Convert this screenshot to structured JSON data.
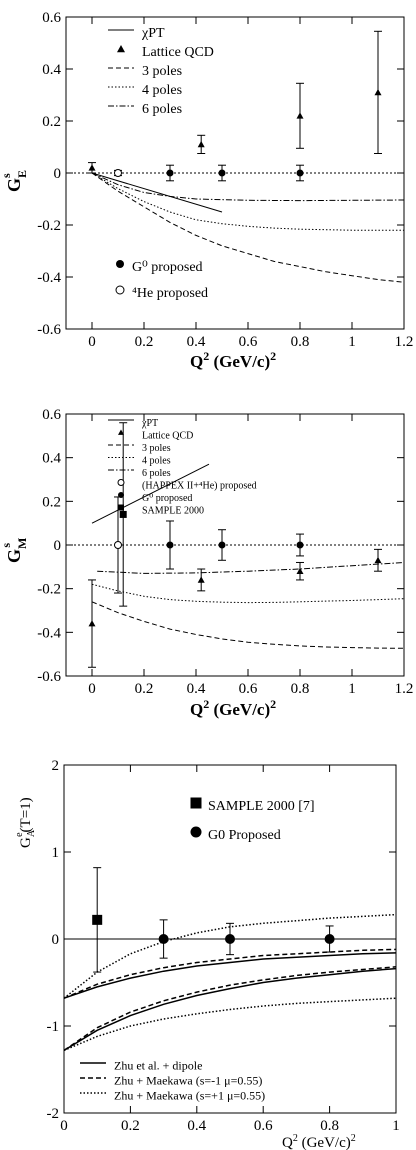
{
  "chart_data": [
    {
      "type": "scatter",
      "xlabel": "Q² (GeV/c)²",
      "ylabel": "G^s_E",
      "xlim": [
        -0.1,
        1.2
      ],
      "ylim": [
        -0.6,
        0.6
      ],
      "x_ticks": [
        "0",
        "0.2",
        "0.4",
        "0.6",
        "0.8",
        "1",
        "1.2"
      ],
      "y_ticks": [
        "-0.6",
        "-0.4",
        "-0.2",
        "0",
        "0.2",
        "0.4",
        "0.6"
      ],
      "zero_line": true,
      "series": [
        {
          "name": "χPT",
          "kind": "line",
          "style": "solid",
          "points": [
            [
              0,
              0
            ],
            [
              0.5,
              -0.15
            ]
          ]
        },
        {
          "name": "Lattice QCD",
          "kind": "points",
          "marker": "triangle",
          "points": [
            [
              0,
              0.02,
              0.02
            ],
            [
              0.42,
              0.11,
              0.035
            ],
            [
              0.8,
              0.22,
              0.125
            ],
            [
              1.1,
              0.31,
              0.235
            ]
          ]
        },
        {
          "name": "3 poles",
          "kind": "line",
          "style": "dashed",
          "points": [
            [
              0,
              0
            ],
            [
              0.1,
              -0.07
            ],
            [
              0.2,
              -0.13
            ],
            [
              0.3,
              -0.19
            ],
            [
              0.4,
              -0.24
            ],
            [
              0.5,
              -0.28
            ],
            [
              0.6,
              -0.31
            ],
            [
              0.7,
              -0.34
            ],
            [
              0.8,
              -0.36
            ],
            [
              0.9,
              -0.38
            ],
            [
              1.0,
              -0.395
            ],
            [
              1.1,
              -0.41
            ],
            [
              1.2,
              -0.42
            ]
          ]
        },
        {
          "name": "4 poles",
          "kind": "line",
          "style": "dotted",
          "points": [
            [
              0,
              0
            ],
            [
              0.1,
              -0.06
            ],
            [
              0.2,
              -0.11
            ],
            [
              0.3,
              -0.15
            ],
            [
              0.4,
              -0.18
            ],
            [
              0.5,
              -0.195
            ],
            [
              0.6,
              -0.205
            ],
            [
              0.7,
              -0.212
            ],
            [
              0.8,
              -0.216
            ],
            [
              0.9,
              -0.218
            ],
            [
              1.0,
              -0.22
            ],
            [
              1.1,
              -0.22
            ],
            [
              1.2,
              -0.22
            ]
          ]
        },
        {
          "name": "6 poles",
          "kind": "line",
          "style": "dashdot",
          "points": [
            [
              0,
              0
            ],
            [
              0.1,
              -0.045
            ],
            [
              0.2,
              -0.075
            ],
            [
              0.3,
              -0.09
            ],
            [
              0.4,
              -0.1
            ],
            [
              0.6,
              -0.105
            ],
            [
              0.8,
              -0.106
            ],
            [
              1.0,
              -0.105
            ],
            [
              1.2,
              -0.104
            ]
          ]
        },
        {
          "name": "G⁰ proposed",
          "kind": "points",
          "marker": "filled-circle",
          "points": [
            [
              0.3,
              0,
              0.03
            ],
            [
              0.5,
              0,
              0.03
            ],
            [
              0.8,
              0,
              0.03
            ]
          ]
        },
        {
          "name": "⁴He proposed",
          "kind": "points",
          "marker": "open-circle",
          "points": [
            [
              0.1,
              0,
              0.01
            ]
          ]
        }
      ],
      "legend": [
        {
          "label": "χPT",
          "style": "solid"
        },
        {
          "label": "Lattice QCD",
          "style": "triangle"
        },
        {
          "label": "3 poles",
          "style": "dashed"
        },
        {
          "label": "4 poles",
          "style": "dotted"
        },
        {
          "label": "6 poles",
          "style": "dashdot"
        }
      ],
      "legend2": [
        {
          "label": "G⁰ proposed",
          "style": "filled-circle"
        },
        {
          "label": "⁴He proposed",
          "style": "open-circle"
        }
      ]
    },
    {
      "type": "scatter",
      "xlabel": "Q² (GeV/c)²",
      "ylabel": "G^s_M",
      "xlim": [
        -0.1,
        1.2
      ],
      "ylim": [
        -0.6,
        0.6
      ],
      "x_ticks": [
        "0",
        "0.2",
        "0.4",
        "0.6",
        "0.8",
        "1",
        "1.2"
      ],
      "y_ticks": [
        "-0.6",
        "-0.4",
        "-0.2",
        "0",
        "0.2",
        "0.4",
        "0.6"
      ],
      "zero_line": true,
      "series": [
        {
          "name": "χPT",
          "kind": "line",
          "style": "solid",
          "points": [
            [
              0,
              0.1
            ],
            [
              0.45,
              0.37
            ]
          ]
        },
        {
          "name": "Lattice QCD",
          "kind": "points",
          "marker": "triangle",
          "points": [
            [
              0,
              -0.36,
              0.2
            ],
            [
              0.42,
              -0.16,
              0.05
            ],
            [
              0.8,
              -0.12,
              0.04
            ],
            [
              1.1,
              -0.07,
              0.05
            ]
          ]
        },
        {
          "name": "3 poles",
          "kind": "line",
          "style": "dashed",
          "points": [
            [
              0,
              -0.26
            ],
            [
              0.1,
              -0.31
            ],
            [
              0.2,
              -0.35
            ],
            [
              0.3,
              -0.385
            ],
            [
              0.4,
              -0.41
            ],
            [
              0.5,
              -0.43
            ],
            [
              0.6,
              -0.445
            ],
            [
              0.7,
              -0.455
            ],
            [
              0.8,
              -0.462
            ],
            [
              0.9,
              -0.467
            ],
            [
              1.0,
              -0.47
            ],
            [
              1.1,
              -0.472
            ],
            [
              1.2,
              -0.473
            ]
          ]
        },
        {
          "name": "4 poles",
          "kind": "line",
          "style": "dotted",
          "points": [
            [
              0,
              -0.18
            ],
            [
              0.1,
              -0.21
            ],
            [
              0.2,
              -0.235
            ],
            [
              0.3,
              -0.25
            ],
            [
              0.4,
              -0.258
            ],
            [
              0.5,
              -0.262
            ],
            [
              0.6,
              -0.264
            ],
            [
              0.7,
              -0.263
            ],
            [
              0.8,
              -0.26
            ],
            [
              0.9,
              -0.257
            ],
            [
              1.0,
              -0.254
            ],
            [
              1.1,
              -0.25
            ],
            [
              1.2,
              -0.246
            ]
          ]
        },
        {
          "name": "6 poles",
          "kind": "line",
          "style": "dashdot",
          "points": [
            [
              0.02,
              -0.12
            ],
            [
              0.2,
              -0.13
            ],
            [
              0.4,
              -0.128
            ],
            [
              0.6,
              -0.12
            ],
            [
              0.8,
              -0.11
            ],
            [
              1.0,
              -0.095
            ],
            [
              1.2,
              -0.08
            ]
          ]
        },
        {
          "name": "(HAPPEX II+⁴He) proposed",
          "kind": "points",
          "marker": "open-circle",
          "points": [
            [
              0.1,
              0,
              0.22
            ]
          ]
        },
        {
          "name": "G⁰ proposed",
          "kind": "points",
          "marker": "filled-circle",
          "points": [
            [
              0.3,
              0,
              0.11
            ],
            [
              0.5,
              0,
              0.07
            ],
            [
              0.8,
              0,
              0.05
            ]
          ]
        },
        {
          "name": "SAMPLE 2000",
          "kind": "points",
          "marker": "filled-square",
          "points": [
            [
              0.12,
              0.14,
              0.42
            ]
          ]
        }
      ],
      "legend": [
        {
          "label": "χPT",
          "style": "solid"
        },
        {
          "label": "Lattice QCD",
          "style": "triangle"
        },
        {
          "label": "3 poles",
          "style": "dashed"
        },
        {
          "label": "4 poles",
          "style": "dotted"
        },
        {
          "label": "6 poles",
          "style": "dashdot"
        },
        {
          "label": "(HAPPEX II+⁴He) proposed",
          "style": "open-circle"
        },
        {
          "label": "G⁰ proposed",
          "style": "filled-circle"
        },
        {
          "label": "SAMPLE 2000",
          "style": "filled-square"
        }
      ]
    },
    {
      "type": "scatter",
      "xlabel": "Q² (GeV/c)²",
      "ylabel": "G^e_A(T=1)",
      "xlim": [
        0,
        1
      ],
      "ylim": [
        -2,
        2
      ],
      "x_ticks": [
        "0",
        "0.2",
        "0.4",
        "0.6",
        "0.8",
        "1"
      ],
      "y_ticks": [
        "-2",
        "-1",
        "0",
        "1",
        "2"
      ],
      "zero_line": true,
      "series": [
        {
          "name": "SAMPLE 2000 [7]",
          "kind": "points",
          "marker": "filled-square",
          "points": [
            [
              0.1,
              0.22,
              0.6
            ]
          ]
        },
        {
          "name": "G0 Proposed",
          "kind": "points",
          "marker": "filled-circle",
          "points": [
            [
              0.3,
              0,
              0.22
            ],
            [
              0.5,
              0,
              0.18
            ],
            [
              0.8,
              0,
              0.15
            ]
          ]
        },
        {
          "name": "Zhu et al. + dipole",
          "kind": "band",
          "style": "solid",
          "upper": [
            [
              0,
              -0.68
            ],
            [
              0.1,
              -0.55
            ],
            [
              0.2,
              -0.45
            ],
            [
              0.3,
              -0.37
            ],
            [
              0.4,
              -0.31
            ],
            [
              0.5,
              -0.27
            ],
            [
              0.6,
              -0.23
            ],
            [
              0.7,
              -0.21
            ],
            [
              0.8,
              -0.19
            ],
            [
              0.9,
              -0.17
            ],
            [
              1.0,
              -0.16
            ]
          ],
          "lower": [
            [
              0,
              -1.28
            ],
            [
              0.1,
              -1.05
            ],
            [
              0.2,
              -0.88
            ],
            [
              0.3,
              -0.75
            ],
            [
              0.4,
              -0.65
            ],
            [
              0.5,
              -0.57
            ],
            [
              0.6,
              -0.5
            ],
            [
              0.7,
              -0.45
            ],
            [
              0.8,
              -0.41
            ],
            [
              0.9,
              -0.37
            ],
            [
              1.0,
              -0.34
            ]
          ]
        },
        {
          "name": "Zhu + Maekawa (s=-1 μ=0.55)",
          "kind": "band",
          "style": "dashed",
          "upper": [
            [
              0,
              -0.68
            ],
            [
              0.1,
              -0.52
            ],
            [
              0.2,
              -0.41
            ],
            [
              0.3,
              -0.33
            ],
            [
              0.4,
              -0.27
            ],
            [
              0.5,
              -0.23
            ],
            [
              0.6,
              -0.19
            ],
            [
              0.7,
              -0.17
            ],
            [
              0.8,
              -0.15
            ],
            [
              0.9,
              -0.13
            ],
            [
              1.0,
              -0.12
            ]
          ],
          "lower": [
            [
              0,
              -1.28
            ],
            [
              0.1,
              -1.02
            ],
            [
              0.2,
              -0.84
            ],
            [
              0.3,
              -0.71
            ],
            [
              0.4,
              -0.61
            ],
            [
              0.5,
              -0.53
            ],
            [
              0.6,
              -0.47
            ],
            [
              0.7,
              -0.42
            ],
            [
              0.8,
              -0.38
            ],
            [
              0.9,
              -0.35
            ],
            [
              1.0,
              -0.32
            ]
          ]
        },
        {
          "name": "Zhu + Maekawa (s=+1 μ=0.55)",
          "kind": "band",
          "style": "dotted",
          "upper": [
            [
              0,
              -0.68
            ],
            [
              0.1,
              -0.38
            ],
            [
              0.2,
              -0.17
            ],
            [
              0.3,
              -0.03
            ],
            [
              0.4,
              0.07
            ],
            [
              0.5,
              0.14
            ],
            [
              0.6,
              0.18
            ],
            [
              0.7,
              0.21
            ],
            [
              0.8,
              0.24
            ],
            [
              0.9,
              0.26
            ],
            [
              1.0,
              0.28
            ]
          ],
          "lower": [
            [
              0,
              -1.28
            ],
            [
              0.1,
              -1.12
            ],
            [
              0.2,
              -1.0
            ],
            [
              0.3,
              -0.92
            ],
            [
              0.4,
              -0.86
            ],
            [
              0.5,
              -0.81
            ],
            [
              0.6,
              -0.77
            ],
            [
              0.7,
              -0.74
            ],
            [
              0.8,
              -0.72
            ],
            [
              0.9,
              -0.7
            ],
            [
              1.0,
              -0.68
            ]
          ]
        }
      ],
      "legend": [
        {
          "label": "SAMPLE 2000 [7]",
          "style": "filled-square"
        },
        {
          "label": "G0 Proposed",
          "style": "filled-circle"
        }
      ],
      "legend2": [
        {
          "label": "Zhu et al. + dipole",
          "style": "solid"
        },
        {
          "label": "Zhu + Maekawa (s=-1 μ=0.55)",
          "style": "dashed"
        },
        {
          "label": "Zhu + Maekawa (s=+1 μ=0.55)",
          "style": "dotted"
        }
      ]
    }
  ]
}
